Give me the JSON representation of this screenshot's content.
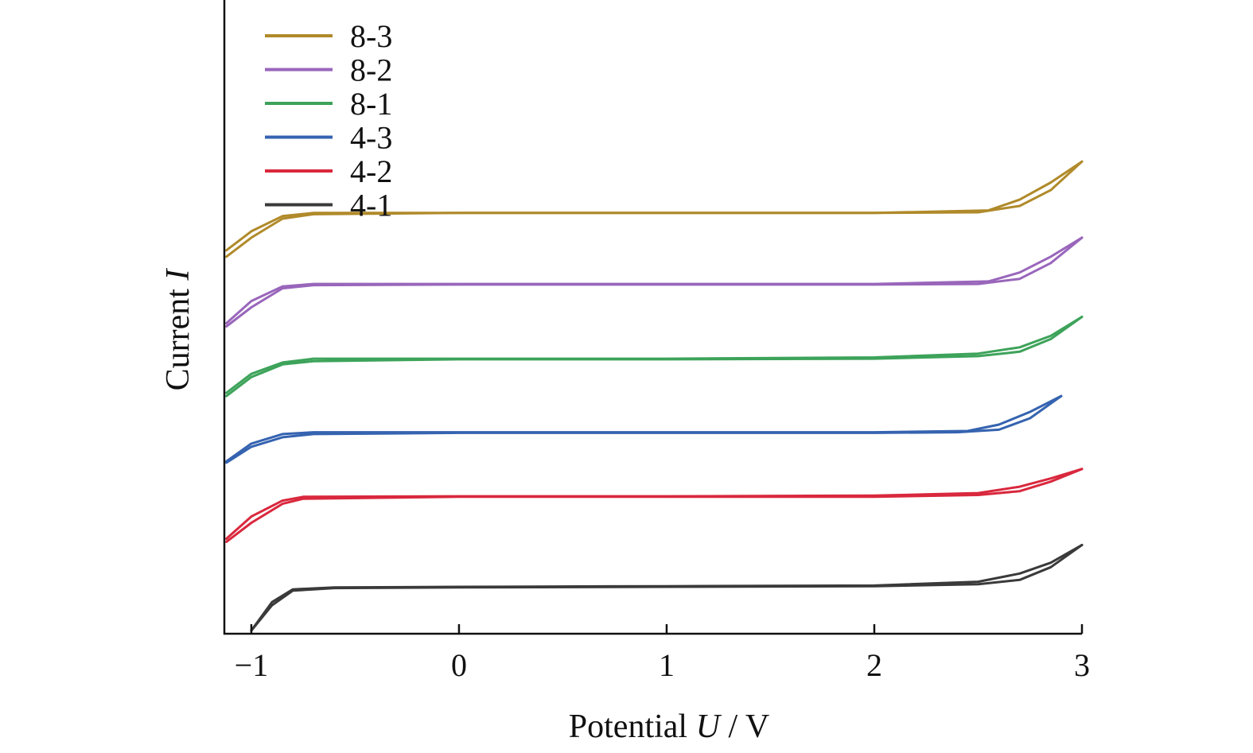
{
  "chart_data": {
    "type": "line",
    "title": "",
    "xlabel_prefix": "Potential ",
    "xlabel_var": "U",
    "xlabel_suffix": " / V",
    "ylabel_prefix": "Current ",
    "ylabel_var": "I",
    "xlim": [
      -1.13,
      3.0
    ],
    "ylim": [
      0,
      1
    ],
    "x_ticks": [
      {
        "value": -1,
        "label": "−1"
      },
      {
        "value": 0,
        "label": "0"
      },
      {
        "value": 1,
        "label": "1"
      },
      {
        "value": 2,
        "label": "2"
      },
      {
        "value": 3,
        "label": "3"
      }
    ],
    "y_ticks": [],
    "grid": false,
    "legend_position": "top-left",
    "series": [
      {
        "name": "8-3",
        "color": "#b08a2a",
        "forward": [
          [
            -1.12,
            0.595
          ],
          [
            -1.0,
            0.625
          ],
          [
            -0.85,
            0.655
          ],
          [
            -0.7,
            0.662
          ],
          [
            0,
            0.664
          ],
          [
            1,
            0.664
          ],
          [
            2,
            0.664
          ],
          [
            2.5,
            0.665
          ],
          [
            2.7,
            0.675
          ],
          [
            2.85,
            0.7
          ],
          [
            3.0,
            0.745
          ]
        ],
        "reverse": [
          [
            3.0,
            0.745
          ],
          [
            2.85,
            0.712
          ],
          [
            2.7,
            0.685
          ],
          [
            2.55,
            0.668
          ],
          [
            2,
            0.664
          ],
          [
            1,
            0.664
          ],
          [
            0,
            0.664
          ],
          [
            -0.7,
            0.664
          ],
          [
            -0.85,
            0.659
          ],
          [
            -1.0,
            0.635
          ],
          [
            -1.12,
            0.605
          ]
        ]
      },
      {
        "name": "8-2",
        "color": "#9966bb",
        "forward": [
          [
            -1.12,
            0.485
          ],
          [
            -1.0,
            0.515
          ],
          [
            -0.85,
            0.545
          ],
          [
            -0.7,
            0.55
          ],
          [
            0,
            0.551
          ],
          [
            1,
            0.551
          ],
          [
            2,
            0.551
          ],
          [
            2.5,
            0.552
          ],
          [
            2.7,
            0.56
          ],
          [
            2.85,
            0.585
          ],
          [
            3.0,
            0.625
          ]
        ],
        "reverse": [
          [
            3.0,
            0.625
          ],
          [
            2.85,
            0.595
          ],
          [
            2.7,
            0.57
          ],
          [
            2.55,
            0.556
          ],
          [
            2,
            0.552
          ],
          [
            1,
            0.552
          ],
          [
            0,
            0.552
          ],
          [
            -0.7,
            0.552
          ],
          [
            -0.85,
            0.548
          ],
          [
            -1.0,
            0.525
          ],
          [
            -1.12,
            0.49
          ]
        ]
      },
      {
        "name": "8-1",
        "color": "#3da35a",
        "forward": [
          [
            -1.12,
            0.375
          ],
          [
            -1.0,
            0.405
          ],
          [
            -0.85,
            0.425
          ],
          [
            -0.7,
            0.43
          ],
          [
            0,
            0.433
          ],
          [
            1,
            0.433
          ],
          [
            2,
            0.434
          ],
          [
            2.5,
            0.438
          ],
          [
            2.7,
            0.445
          ],
          [
            2.85,
            0.465
          ],
          [
            3.0,
            0.5
          ]
        ],
        "reverse": [
          [
            3.0,
            0.5
          ],
          [
            2.85,
            0.47
          ],
          [
            2.7,
            0.452
          ],
          [
            2.5,
            0.442
          ],
          [
            2,
            0.436
          ],
          [
            1,
            0.434
          ],
          [
            0,
            0.434
          ],
          [
            -0.7,
            0.434
          ],
          [
            -0.85,
            0.428
          ],
          [
            -1.0,
            0.41
          ],
          [
            -1.12,
            0.38
          ]
        ]
      },
      {
        "name": "4-3",
        "color": "#3563b0",
        "forward": [
          [
            -1.12,
            0.27
          ],
          [
            -1.0,
            0.295
          ],
          [
            -0.85,
            0.31
          ],
          [
            -0.7,
            0.315
          ],
          [
            0,
            0.317
          ],
          [
            1,
            0.317
          ],
          [
            2,
            0.317
          ],
          [
            2.4,
            0.318
          ],
          [
            2.6,
            0.322
          ],
          [
            2.75,
            0.34
          ],
          [
            2.9,
            0.375
          ]
        ],
        "reverse": [
          [
            2.9,
            0.375
          ],
          [
            2.75,
            0.35
          ],
          [
            2.6,
            0.33
          ],
          [
            2.45,
            0.32
          ],
          [
            2,
            0.318
          ],
          [
            1,
            0.318
          ],
          [
            0,
            0.318
          ],
          [
            -0.7,
            0.318
          ],
          [
            -0.85,
            0.315
          ],
          [
            -1.0,
            0.3
          ],
          [
            -1.12,
            0.272
          ]
        ]
      },
      {
        "name": "4-2",
        "color": "#d9283d",
        "forward": [
          [
            -1.12,
            0.145
          ],
          [
            -1.0,
            0.175
          ],
          [
            -0.85,
            0.205
          ],
          [
            -0.75,
            0.213
          ],
          [
            0,
            0.216
          ],
          [
            1,
            0.216
          ],
          [
            2,
            0.216
          ],
          [
            2.5,
            0.219
          ],
          [
            2.7,
            0.225
          ],
          [
            2.85,
            0.24
          ],
          [
            3.0,
            0.26
          ]
        ],
        "reverse": [
          [
            3.0,
            0.26
          ],
          [
            2.85,
            0.245
          ],
          [
            2.7,
            0.232
          ],
          [
            2.5,
            0.222
          ],
          [
            2,
            0.218
          ],
          [
            1,
            0.217
          ],
          [
            0,
            0.217
          ],
          [
            -0.75,
            0.216
          ],
          [
            -0.85,
            0.21
          ],
          [
            -1.0,
            0.185
          ],
          [
            -1.12,
            0.15
          ]
        ]
      },
      {
        "name": "4-1",
        "color": "#3a3a3a",
        "forward": [
          [
            -1.0,
            0.005
          ],
          [
            -0.9,
            0.045
          ],
          [
            -0.8,
            0.068
          ],
          [
            -0.6,
            0.072
          ],
          [
            0,
            0.073
          ],
          [
            1,
            0.074
          ],
          [
            2,
            0.075
          ],
          [
            2.5,
            0.078
          ],
          [
            2.7,
            0.085
          ],
          [
            2.85,
            0.105
          ],
          [
            3.0,
            0.14
          ]
        ],
        "reverse": [
          [
            3.0,
            0.14
          ],
          [
            2.85,
            0.112
          ],
          [
            2.7,
            0.095
          ],
          [
            2.5,
            0.082
          ],
          [
            2,
            0.076
          ],
          [
            1,
            0.075
          ],
          [
            0,
            0.074
          ],
          [
            -0.6,
            0.073
          ],
          [
            -0.8,
            0.07
          ],
          [
            -0.9,
            0.05
          ],
          [
            -1.0,
            0.005
          ]
        ]
      }
    ]
  }
}
